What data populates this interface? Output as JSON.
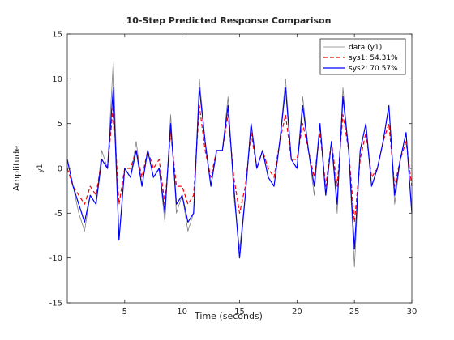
{
  "chart_data": {
    "type": "line",
    "title": "10-Step Predicted Response Comparison",
    "xlabel": "Time (seconds)",
    "ylabel": "Amplitude",
    "channel_label": "y1",
    "xlim": [
      0,
      30
    ],
    "ylim": [
      -15,
      15
    ],
    "xticks": [
      5,
      10,
      15,
      20,
      25,
      30
    ],
    "yticks": [
      -15,
      -10,
      -5,
      0,
      5,
      10,
      15
    ],
    "grid": false,
    "legend_position": "top-right",
    "colors": {
      "data": "#808080",
      "sys1": "#ff0000",
      "sys2": "#0000ff"
    },
    "series": [
      {
        "name": "data (y1)",
        "style": "solid",
        "x": [
          0,
          0.5,
          1,
          1.5,
          2,
          2.5,
          3,
          3.5,
          4,
          4.5,
          5,
          5.5,
          6,
          6.5,
          7,
          7.5,
          8,
          8.5,
          9,
          9.5,
          10,
          10.5,
          11,
          11.5,
          12,
          12.5,
          13,
          13.5,
          14,
          14.5,
          15,
          15.5,
          16,
          16.5,
          17,
          17.5,
          18,
          18.5,
          19,
          19.5,
          20,
          20.5,
          21,
          21.5,
          22,
          22.5,
          23,
          23.5,
          24,
          24.5,
          25,
          25.5,
          26,
          26.5,
          27,
          27.5,
          28,
          28.5,
          29,
          29.5,
          30
        ],
        "y": [
          1,
          -2,
          -5,
          -7,
          -3,
          -4,
          2,
          0,
          12,
          -8,
          0,
          -1,
          3,
          -2,
          2,
          -1,
          0,
          -6,
          6,
          -5,
          -3,
          -7,
          -5,
          10,
          3,
          -2,
          2,
          2,
          8,
          -3,
          -9,
          -3,
          5,
          0,
          2,
          -1,
          -2,
          3,
          10,
          1,
          0,
          8,
          2,
          -3,
          5,
          -3,
          3,
          -5,
          9,
          2,
          -11,
          2,
          5,
          -2,
          0,
          3,
          7,
          -4,
          1,
          4,
          -5
        ]
      },
      {
        "name": "sys1: 54.31%",
        "style": "dashed",
        "x": [
          0,
          0.5,
          1,
          1.5,
          2,
          2.5,
          3,
          3.5,
          4,
          4.5,
          5,
          5.5,
          6,
          6.5,
          7,
          7.5,
          8,
          8.5,
          9,
          9.5,
          10,
          10.5,
          11,
          11.5,
          12,
          12.5,
          13,
          13.5,
          14,
          14.5,
          15,
          15.5,
          16,
          16.5,
          17,
          17.5,
          18,
          18.5,
          19,
          19.5,
          20,
          20.5,
          21,
          21.5,
          22,
          22.5,
          23,
          23.5,
          24,
          24.5,
          25,
          25.5,
          26,
          26.5,
          27,
          27.5,
          28,
          28.5,
          29,
          29.5,
          30
        ],
        "y": [
          0,
          -2,
          -3,
          -4,
          -2,
          -3,
          1,
          0,
          7,
          -4,
          0,
          0,
          2,
          -1,
          2,
          0,
          1,
          -4,
          4,
          -2,
          -2,
          -4,
          -3,
          7,
          2,
          -1,
          2,
          2,
          6,
          -1,
          -5,
          -2,
          4,
          0,
          2,
          0,
          -1,
          3,
          6,
          1,
          1,
          5,
          2,
          -1,
          4,
          -2,
          3,
          -2,
          6,
          2,
          -6,
          1,
          4,
          -1,
          0,
          3,
          5,
          -2,
          1,
          3,
          -2
        ]
      },
      {
        "name": "sys2: 70.57%",
        "style": "solid",
        "x": [
          0,
          0.5,
          1,
          1.5,
          2,
          2.5,
          3,
          3.5,
          4,
          4.5,
          5,
          5.5,
          6,
          6.5,
          7,
          7.5,
          8,
          8.5,
          9,
          9.5,
          10,
          10.5,
          11,
          11.5,
          12,
          12.5,
          13,
          13.5,
          14,
          14.5,
          15,
          15.5,
          16,
          16.5,
          17,
          17.5,
          18,
          18.5,
          19,
          19.5,
          20,
          20.5,
          21,
          21.5,
          22,
          22.5,
          23,
          23.5,
          24,
          24.5,
          25,
          25.5,
          26,
          26.5,
          27,
          27.5,
          28,
          28.5,
          29,
          29.5,
          30
        ],
        "y": [
          1,
          -2,
          -4,
          -6,
          -3,
          -4,
          1,
          0,
          9,
          -8,
          0,
          -1,
          2,
          -2,
          2,
          -1,
          0,
          -5,
          5,
          -4,
          -3,
          -6,
          -5,
          9,
          3,
          -2,
          2,
          2,
          7,
          -2,
          -10,
          -3,
          5,
          0,
          2,
          -1,
          -2,
          3,
          9,
          1,
          0,
          7,
          2,
          -2,
          5,
          -3,
          3,
          -4,
          8,
          2,
          -9,
          2,
          5,
          -2,
          0,
          3,
          7,
          -3,
          1,
          4,
          -5
        ]
      }
    ]
  }
}
